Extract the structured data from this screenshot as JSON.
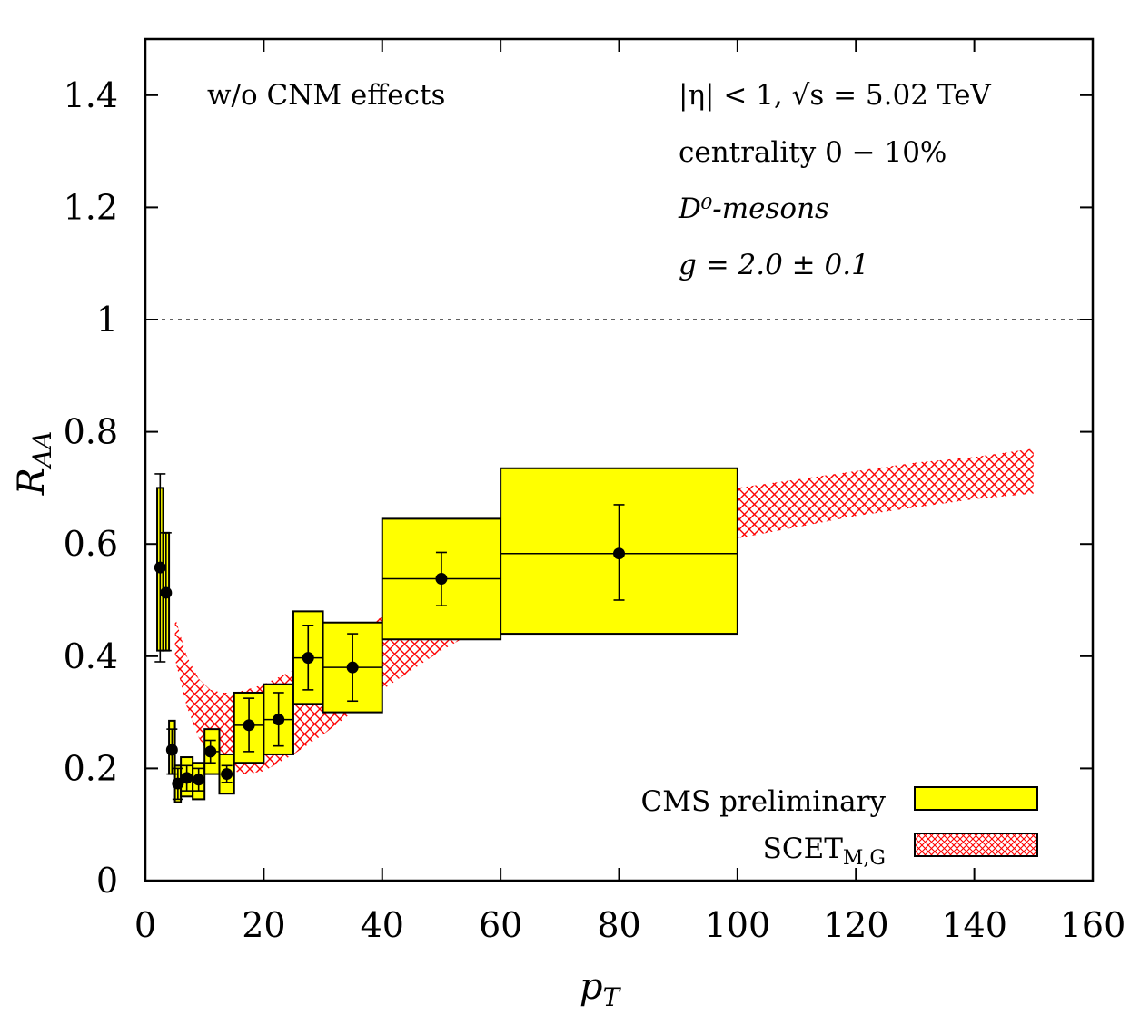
{
  "chart_data": {
    "type": "scatter",
    "xlabel": "p",
    "xlabel_sub": "T",
    "ylabel": "R",
    "ylabel_sub": "AA",
    "xlim": [
      0,
      160
    ],
    "ylim": [
      0,
      1.5
    ],
    "x_ticks": [
      0,
      20,
      40,
      60,
      80,
      100,
      120,
      140,
      160
    ],
    "x_tick_labels": [
      "0",
      "20",
      "40",
      "60",
      "80",
      "100",
      "120",
      "140",
      "160"
    ],
    "y_ticks": [
      0,
      0.2,
      0.4,
      0.6,
      0.8,
      1.0,
      1.2,
      1.4
    ],
    "y_tick_labels": [
      "0",
      "0.2",
      "0.4",
      "0.6",
      "0.8",
      "1",
      "1.2",
      "1.4"
    ],
    "reference_line": {
      "y": 1.0,
      "style": "dashed"
    },
    "annotations": {
      "cnm": "w/o CNM effects",
      "eta": "|η| < 1,  √s = 5.02 TeV",
      "centrality": "centrality 0 − 10%",
      "meson": "D⁰-mesons",
      "coupling": "g = 2.0 ± 0.1"
    },
    "legend": {
      "position": "bottom-right",
      "cms_label": "CMS preliminary",
      "scet_label": "SCET",
      "scet_sub": "M,G"
    },
    "colors": {
      "cms_fill": "#ffff00",
      "scet_hatch": "#ff0000",
      "marker": "#000000"
    },
    "series": [
      {
        "name": "CMS preliminary",
        "kind": "points_with_syst_boxes",
        "points": [
          {
            "x": 2.5,
            "y": 0.558,
            "xlo": 2.0,
            "xhi": 3.0,
            "ylo": 0.39,
            "yhi": 0.725,
            "slo": 0.41,
            "shi": 0.7
          },
          {
            "x": 3.5,
            "y": 0.513,
            "xlo": 3.0,
            "xhi": 4.0,
            "ylo": 0.41,
            "yhi": 0.62,
            "slo": 0.41,
            "shi": 0.62
          },
          {
            "x": 4.5,
            "y": 0.233,
            "xlo": 4.0,
            "xhi": 5.0,
            "ylo": 0.19,
            "yhi": 0.27,
            "slo": 0.19,
            "shi": 0.285
          },
          {
            "x": 5.5,
            "y": 0.173,
            "xlo": 5.0,
            "xhi": 6.0,
            "ylo": 0.145,
            "yhi": 0.2,
            "slo": 0.14,
            "shi": 0.205
          },
          {
            "x": 7.0,
            "y": 0.183,
            "xlo": 6.0,
            "xhi": 8.0,
            "ylo": 0.16,
            "yhi": 0.205,
            "slo": 0.15,
            "shi": 0.22
          },
          {
            "x": 9.0,
            "y": 0.18,
            "xlo": 8.0,
            "xhi": 10.0,
            "ylo": 0.16,
            "yhi": 0.2,
            "slo": 0.145,
            "shi": 0.21
          },
          {
            "x": 11.0,
            "y": 0.23,
            "xlo": 10.0,
            "xhi": 12.5,
            "ylo": 0.21,
            "yhi": 0.25,
            "slo": 0.19,
            "shi": 0.27
          },
          {
            "x": 13.75,
            "y": 0.19,
            "xlo": 12.5,
            "xhi": 15.0,
            "ylo": 0.175,
            "yhi": 0.205,
            "slo": 0.155,
            "shi": 0.225
          },
          {
            "x": 17.5,
            "y": 0.277,
            "xlo": 15.0,
            "xhi": 20.0,
            "ylo": 0.23,
            "yhi": 0.325,
            "slo": 0.21,
            "shi": 0.335
          },
          {
            "x": 22.5,
            "y": 0.287,
            "xlo": 20.0,
            "xhi": 25.0,
            "ylo": 0.24,
            "yhi": 0.335,
            "slo": 0.225,
            "shi": 0.35
          },
          {
            "x": 27.5,
            "y": 0.397,
            "xlo": 25.0,
            "xhi": 30.0,
            "ylo": 0.34,
            "yhi": 0.455,
            "slo": 0.315,
            "shi": 0.48
          },
          {
            "x": 35.0,
            "y": 0.38,
            "xlo": 30.0,
            "xhi": 40.0,
            "ylo": 0.32,
            "yhi": 0.44,
            "slo": 0.3,
            "shi": 0.46
          },
          {
            "x": 50.0,
            "y": 0.538,
            "xlo": 40.0,
            "xhi": 60.0,
            "ylo": 0.49,
            "yhi": 0.585,
            "slo": 0.43,
            "shi": 0.645
          },
          {
            "x": 80.0,
            "y": 0.583,
            "xlo": 60.0,
            "xhi": 100.0,
            "ylo": 0.5,
            "yhi": 0.67,
            "slo": 0.44,
            "shi": 0.735
          }
        ]
      },
      {
        "name": "SCET_M,G",
        "kind": "band",
        "x": [
          5,
          7,
          9,
          11,
          13,
          15,
          17,
          20,
          25,
          30,
          35,
          40,
          50,
          60,
          70,
          80,
          90,
          100,
          110,
          120,
          130,
          140,
          150
        ],
        "low": [
          0.395,
          0.31,
          0.255,
          0.22,
          0.205,
          0.195,
          0.19,
          0.195,
          0.225,
          0.26,
          0.3,
          0.34,
          0.41,
          0.47,
          0.52,
          0.555,
          0.585,
          0.61,
          0.63,
          0.65,
          0.665,
          0.68,
          0.69
        ],
        "high": [
          0.47,
          0.4,
          0.36,
          0.34,
          0.335,
          0.335,
          0.34,
          0.35,
          0.375,
          0.41,
          0.44,
          0.47,
          0.53,
          0.585,
          0.625,
          0.655,
          0.68,
          0.7,
          0.715,
          0.73,
          0.745,
          0.755,
          0.77
        ]
      }
    ]
  }
}
